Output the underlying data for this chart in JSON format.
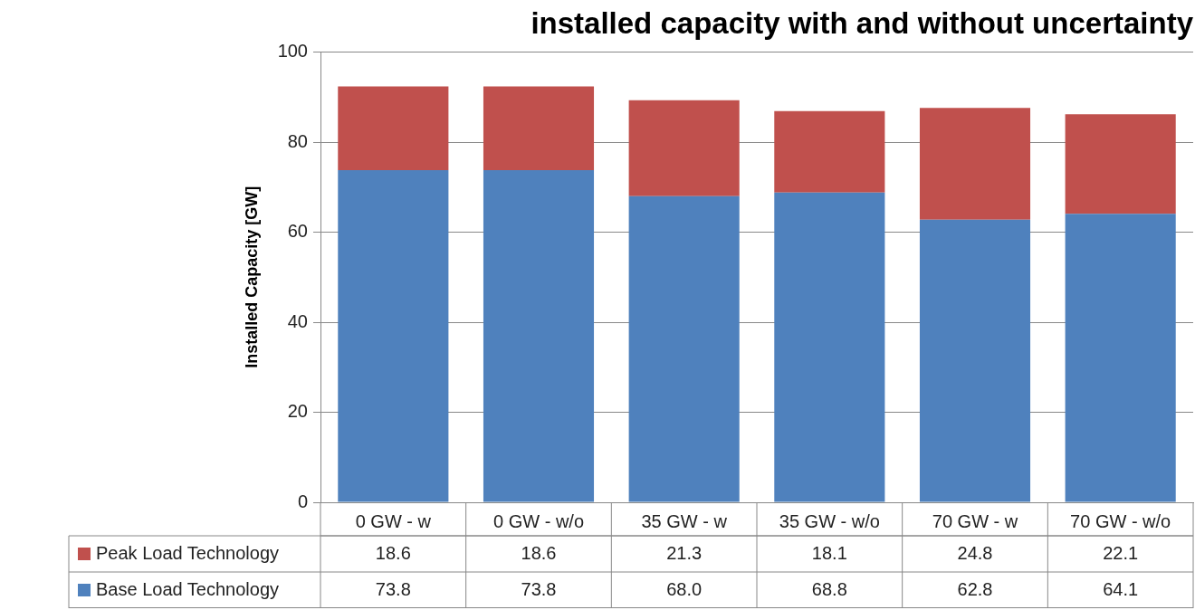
{
  "chart_data": {
    "type": "bar",
    "title": "installed capacity with and without uncertainty",
    "ylabel": "Installed Capacity [GW]",
    "categories": [
      "0 GW - w",
      "0 GW - w/o",
      "35 GW - w",
      "35 GW - w/o",
      "70 GW - w",
      "70 GW - w/o"
    ],
    "series": [
      {
        "name": "Base Load Technology",
        "color": "#4f81bd",
        "values": [
          73.8,
          73.8,
          68.0,
          68.8,
          62.8,
          64.1
        ],
        "value_labels": [
          "73.8",
          "73.8",
          "68.0",
          "68.8",
          "62.8",
          "64.1"
        ]
      },
      {
        "name": "Peak Load Technology",
        "color": "#c0504d",
        "values": [
          18.6,
          18.6,
          21.3,
          18.1,
          24.8,
          22.1
        ],
        "value_labels": [
          "18.6",
          "18.6",
          "21.3",
          "18.1",
          "24.8",
          "22.1"
        ]
      }
    ],
    "stacked": true,
    "ylim": [
      0,
      100
    ],
    "yticks": [
      0,
      20,
      40,
      60,
      80,
      100
    ],
    "grid": "y",
    "legend": "bottom"
  }
}
